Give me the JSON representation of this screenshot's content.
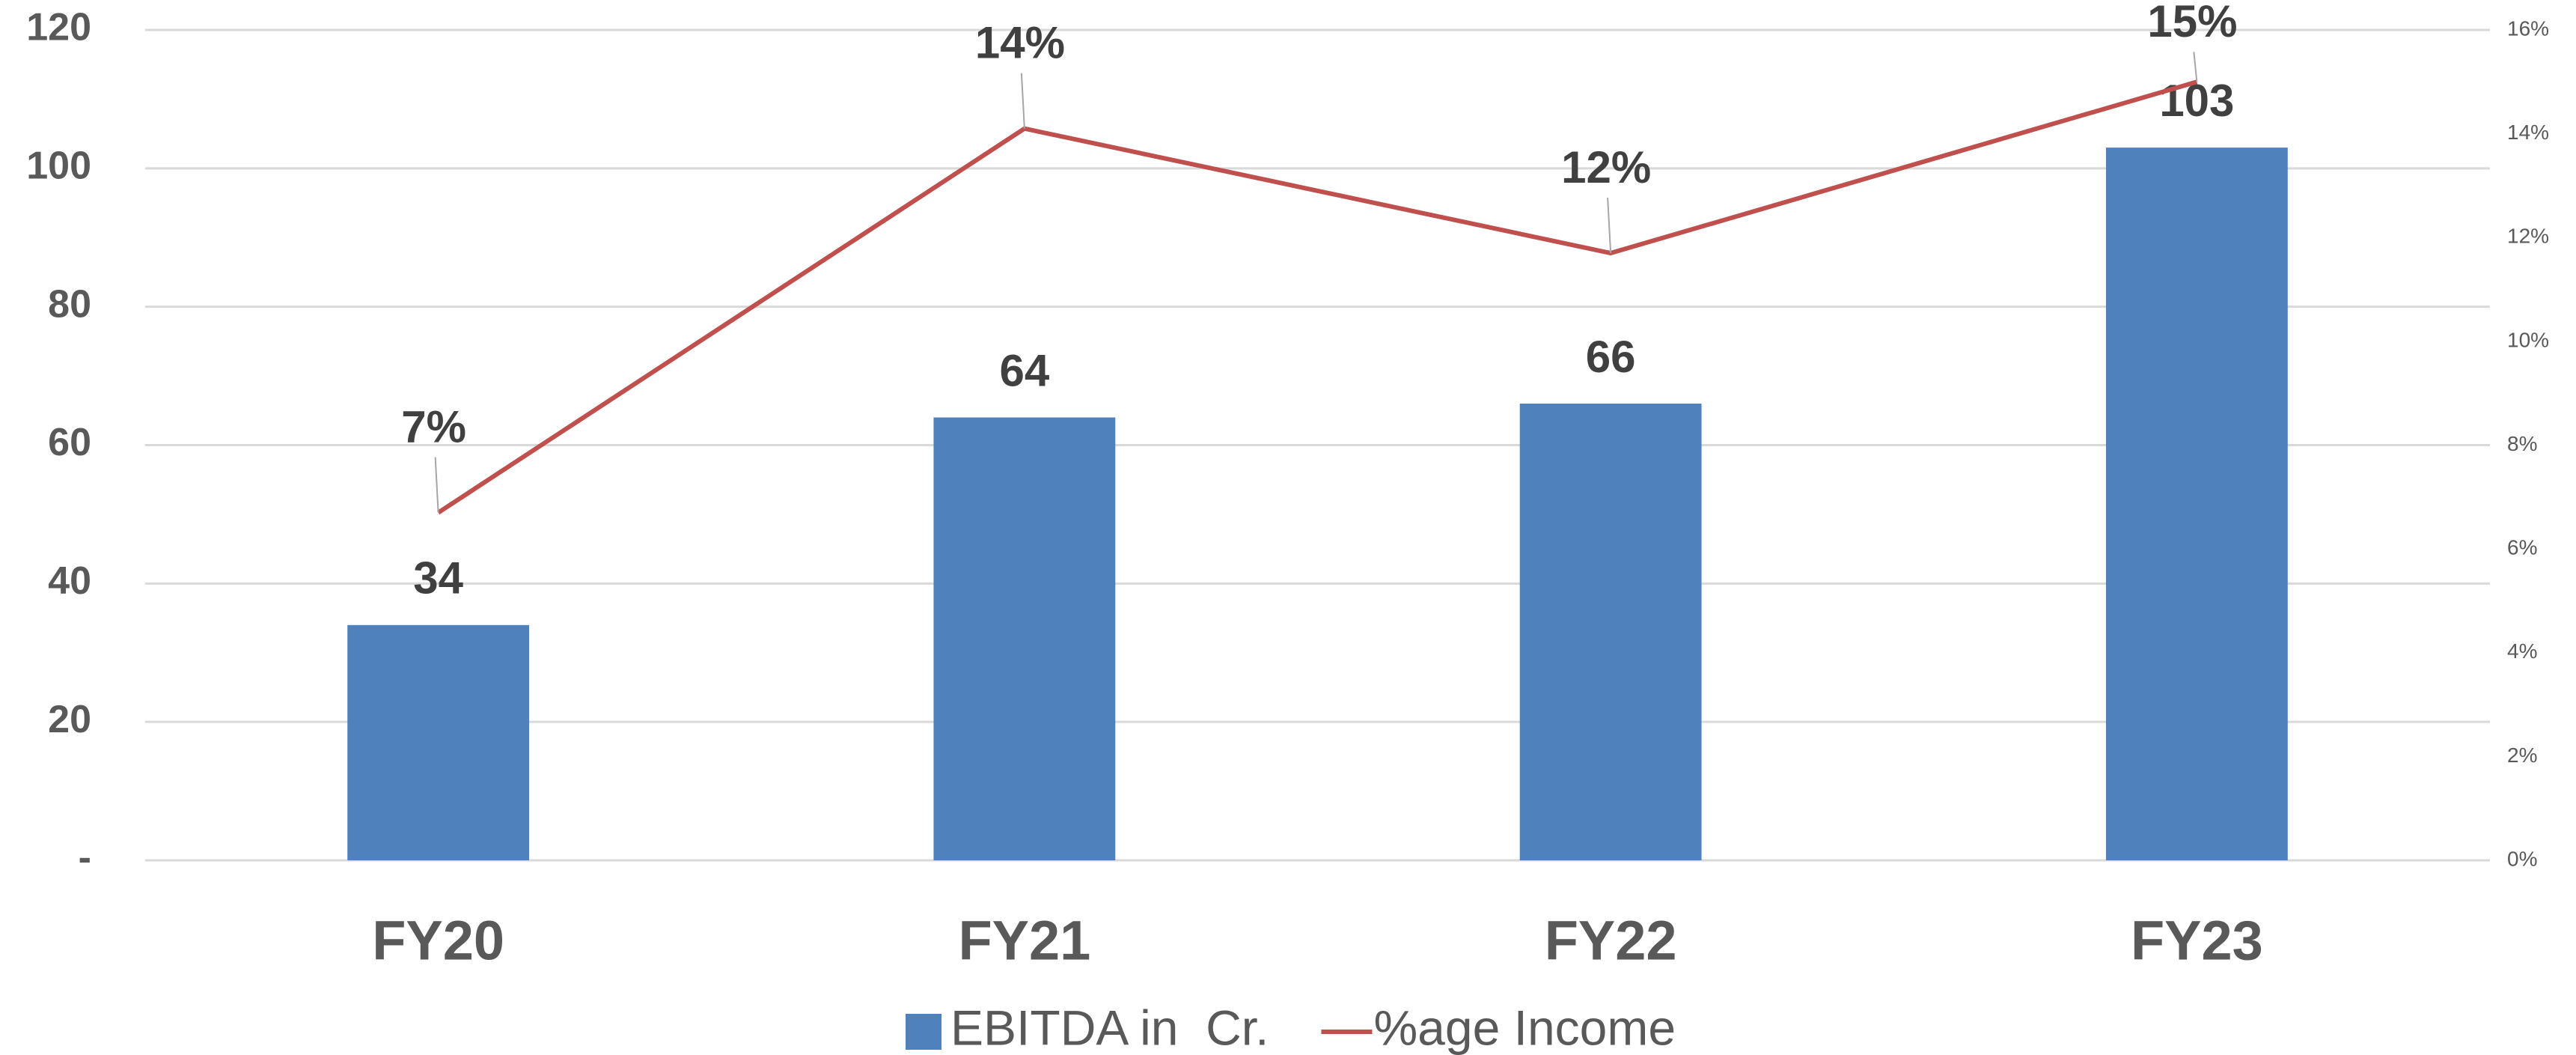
{
  "chart_data": {
    "type": "bar",
    "categories": [
      "FY20",
      "FY21",
      "FY22",
      "FY23"
    ],
    "series": [
      {
        "name": "EBITDA in  Cr.",
        "type": "bar",
        "color": "#4f81bd",
        "values": [
          34,
          64,
          66,
          103
        ]
      },
      {
        "name": "%age Income",
        "type": "line",
        "axis": "y2",
        "color": "#c0504d",
        "values": [
          6.7,
          14.1,
          11.7,
          15.0
        ],
        "value_labels": [
          "7%",
          "14%",
          "12%",
          "15%"
        ]
      }
    ],
    "ylim": [
      0,
      120
    ],
    "yticks": [
      {
        "value": 0,
        "label": "-"
      },
      20,
      40,
      60,
      80,
      100,
      120
    ],
    "y2lim": [
      0,
      16
    ],
    "y2ticks": [
      {
        "value": 0,
        "label": "0%"
      },
      {
        "value": 2,
        "label": "2%"
      },
      {
        "value": 4,
        "label": "4%"
      },
      {
        "value": 6,
        "label": "6%"
      },
      {
        "value": 8,
        "label": "8%"
      },
      {
        "value": 10,
        "label": "10%"
      },
      {
        "value": 12,
        "label": "12%"
      },
      {
        "value": 14,
        "label": "14%"
      },
      {
        "value": 16,
        "label": "16%"
      }
    ],
    "grid": true,
    "legend": "bottom"
  }
}
